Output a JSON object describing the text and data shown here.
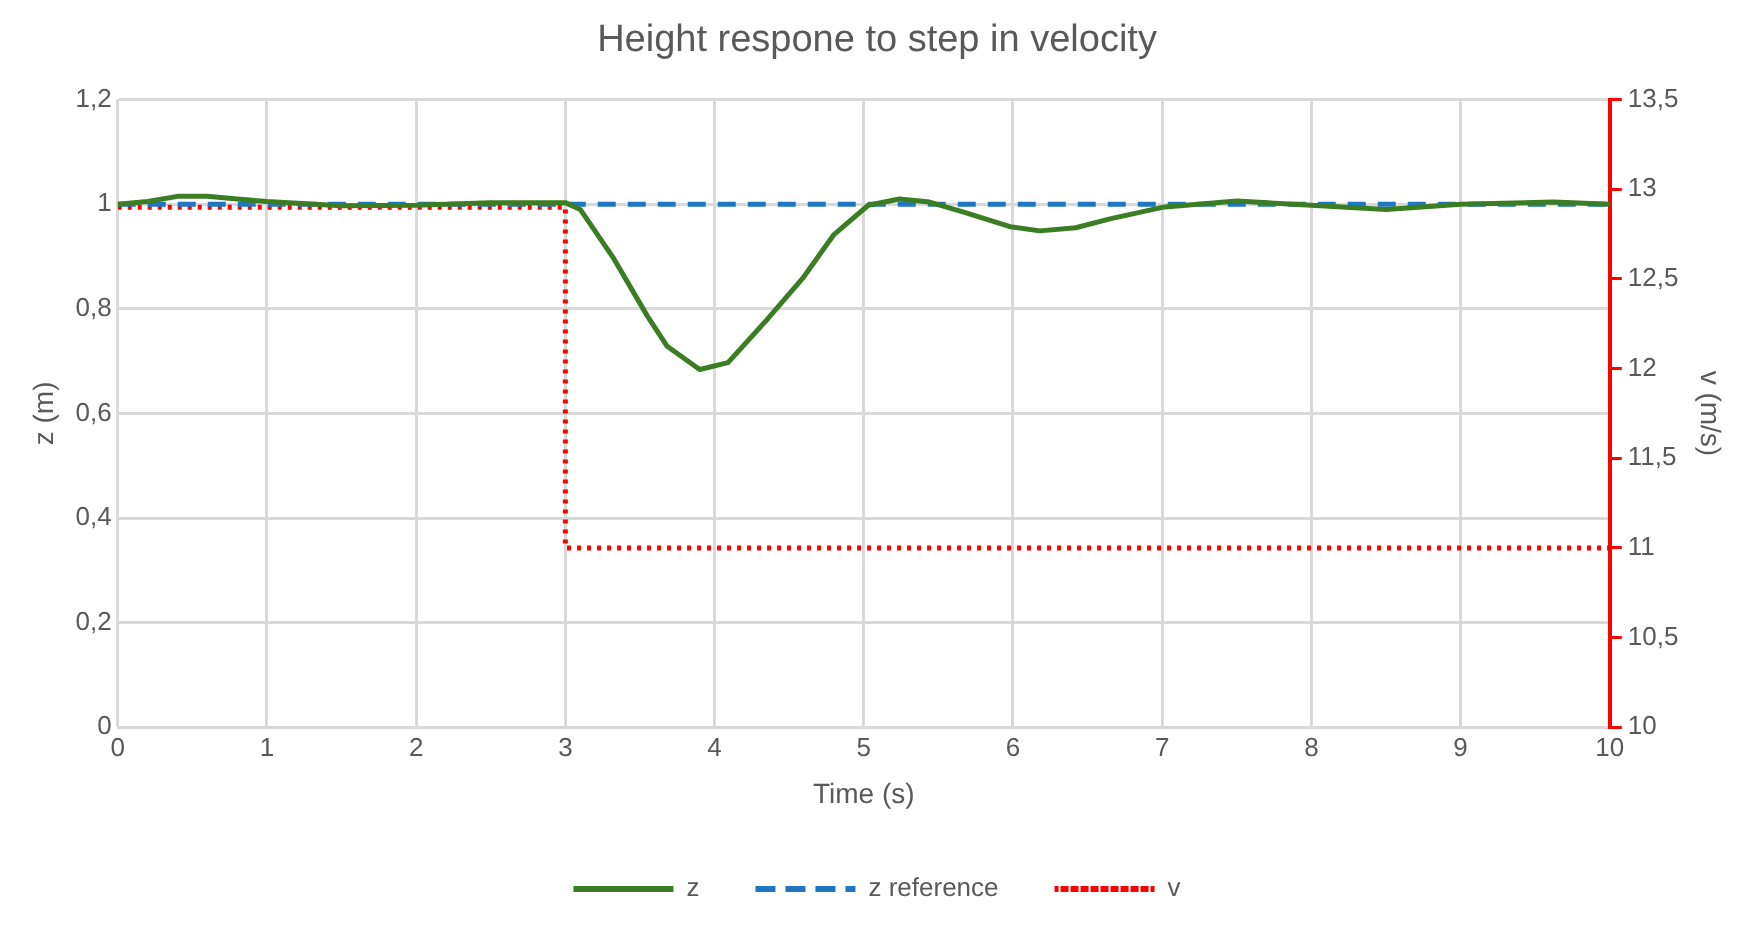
{
  "chart_data": {
    "type": "line",
    "title": "Height respone to step in velocity",
    "xlabel": "Time (s)",
    "ylabel": "z (m)",
    "y2label": "v (m/s)",
    "xlim": [
      0,
      10
    ],
    "xticks": [
      0,
      1,
      2,
      3,
      4,
      5,
      6,
      7,
      8,
      9,
      10
    ],
    "ylim": [
      0,
      1.2
    ],
    "yticks": [
      0,
      {
        "value": 0.2,
        "label": "0,2"
      },
      {
        "value": 0.4,
        "label": "0,4"
      },
      {
        "value": 0.6,
        "label": "0,6"
      },
      {
        "value": 0.8,
        "label": "0,8"
      },
      1,
      {
        "value": 1.2,
        "label": "1,2"
      }
    ],
    "y2lim": [
      10,
      13.5
    ],
    "y2ticks": [
      10,
      {
        "value": 10.5,
        "label": "10,5"
      },
      11,
      {
        "value": 11.5,
        "label": "11,5"
      },
      12,
      {
        "value": 12.5,
        "label": "12,5"
      },
      13,
      {
        "value": 13.5,
        "label": "13,5"
      }
    ],
    "grid": true,
    "legend": "bottom",
    "marker": "none",
    "series": [
      {
        "name": "z",
        "color": "#3a7d22",
        "line_style": "solid",
        "x": [
          0,
          0.2,
          0.4,
          0.6,
          0.8,
          1,
          1.5,
          2,
          2.5,
          3,
          3.1,
          3.32,
          3.55,
          3.68,
          3.9,
          4.09,
          4.36,
          4.59,
          4.8,
          5.03,
          5.24,
          5.44,
          5.67,
          5.98,
          6.18,
          6.42,
          6.65,
          7,
          7.5,
          8,
          8.5,
          9,
          9.62,
          10
        ],
        "values": [
          1,
          1.005,
          1.015,
          1.015,
          1.01,
          1.005,
          0.997,
          0.998,
          1.003,
          1.003,
          0.99,
          0.898,
          0.786,
          0.729,
          0.684,
          0.697,
          0.782,
          0.858,
          0.942,
          0.998,
          1.01,
          1.004,
          0.985,
          0.957,
          0.949,
          0.955,
          0.972,
          0.994,
          1.006,
          0.998,
          0.99,
          1,
          1.004,
          1
        ]
      },
      {
        "name": "z reference",
        "color": "#1f77c4",
        "line_style": "dashed",
        "x": [
          0,
          10
        ],
        "values": [
          1,
          1
        ]
      },
      {
        "name": "v",
        "type": "step",
        "axis": "y2",
        "color": "#ff0000",
        "line_style": "dotted",
        "x": [
          0,
          3,
          10
        ],
        "values": [
          12.9,
          11,
          11
        ]
      }
    ]
  }
}
